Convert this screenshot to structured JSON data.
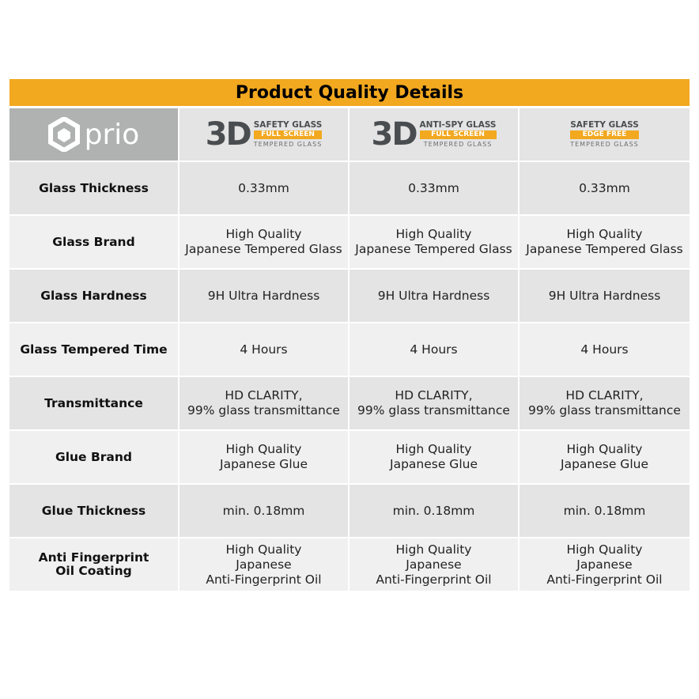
{
  "title": "Product Quality Details",
  "brand": "prio",
  "products": [
    {
      "prefix": "3D",
      "line1": "SAFETY GLASS",
      "line2": "FULL SCREEN",
      "line3": "TEMPERED GLASS"
    },
    {
      "prefix": "3D",
      "line1": "ANTI-SPY GLASS",
      "line2": "FULL SCREEN",
      "line3": "TEMPERED GLASS"
    },
    {
      "prefix": "",
      "line1": "SAFETY GLASS",
      "line2": "EDGE FREE",
      "line3": "TEMPERED GLASS"
    }
  ],
  "rows": [
    {
      "label": [
        "Glass Thickness"
      ],
      "values": [
        [
          "0.33mm"
        ],
        [
          "0.33mm"
        ],
        [
          "0.33mm"
        ]
      ]
    },
    {
      "label": [
        "Glass Brand"
      ],
      "values": [
        [
          "High Quality",
          "Japanese Tempered Glass"
        ],
        [
          "High Quality",
          "Japanese Tempered Glass"
        ],
        [
          "High Quality",
          "Japanese Tempered Glass"
        ]
      ]
    },
    {
      "label": [
        "Glass Hardness"
      ],
      "values": [
        [
          "9H Ultra Hardness"
        ],
        [
          "9H Ultra Hardness"
        ],
        [
          "9H Ultra Hardness"
        ]
      ]
    },
    {
      "label": [
        "Glass Tempered Time"
      ],
      "values": [
        [
          "4 Hours"
        ],
        [
          "4 Hours"
        ],
        [
          "4 Hours"
        ]
      ]
    },
    {
      "label": [
        "Transmittance"
      ],
      "values": [
        [
          "HD CLARITY,",
          "99% glass transmittance"
        ],
        [
          "HD CLARITY,",
          "99% glass transmittance"
        ],
        [
          "HD CLARITY,",
          "99% glass transmittance"
        ]
      ]
    },
    {
      "label": [
        "Glue Brand"
      ],
      "values": [
        [
          "High Quality",
          "Japanese Glue"
        ],
        [
          "High Quality",
          "Japanese Glue"
        ],
        [
          "High Quality",
          "Japanese Glue"
        ]
      ]
    },
    {
      "label": [
        "Glue Thickness"
      ],
      "values": [
        [
          "min. 0.18mm"
        ],
        [
          "min. 0.18mm"
        ],
        [
          "min. 0.18mm"
        ]
      ]
    },
    {
      "label": [
        "Anti Fingerprint",
        "Oil Coating"
      ],
      "values": [
        [
          "High Quality",
          "Japanese",
          "Anti-Fingerprint Oil"
        ],
        [
          "High Quality",
          "Japanese",
          "Anti-Fingerprint Oil"
        ],
        [
          "High Quality",
          "Japanese",
          "Anti-Fingerprint Oil"
        ]
      ]
    }
  ]
}
